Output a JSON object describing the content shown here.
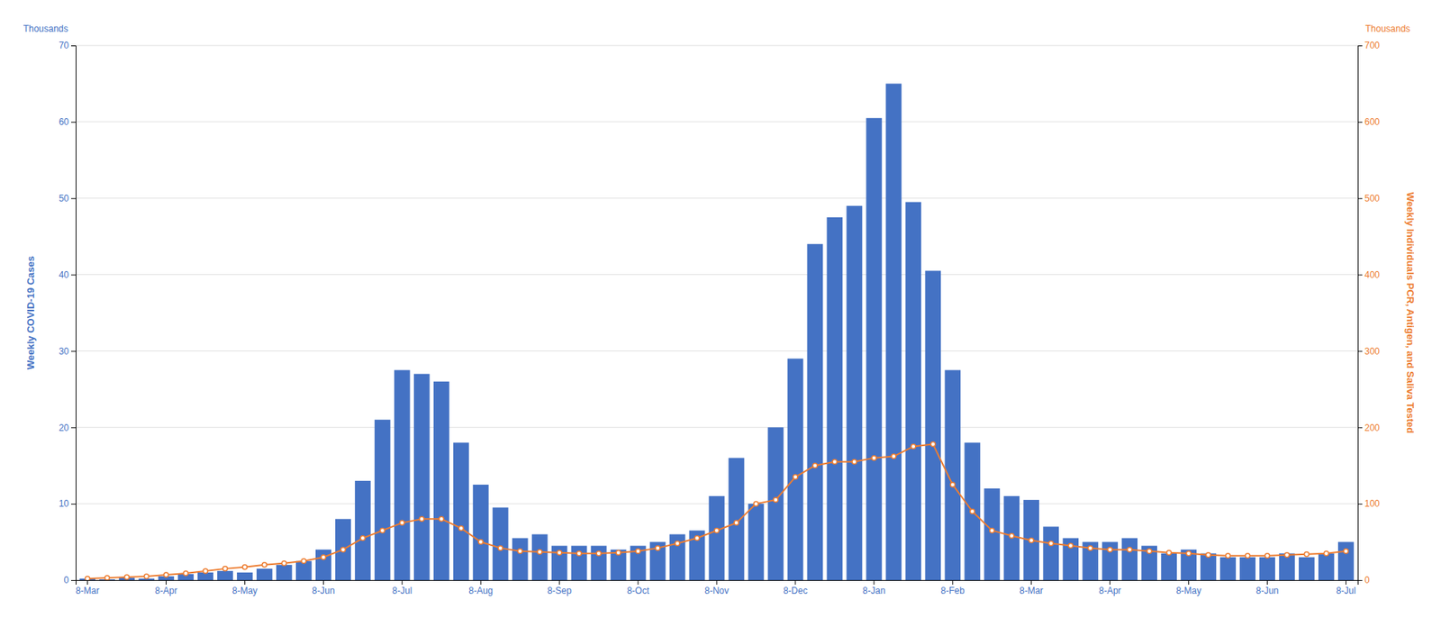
{
  "chart_data": {
    "type": "bar",
    "y_label": "Weekly COVID-19 Cases",
    "y2_label": "Weekly Individuals PCR, Antigen, and Saliva Tested",
    "annotations": [
      {
        "text": "Thousands",
        "axis": "y"
      },
      {
        "text": "Thousands",
        "axis": "y2"
      }
    ],
    "categories": [
      "8-Mar",
      null,
      null,
      null,
      "8-Apr",
      null,
      null,
      null,
      "8-May",
      null,
      null,
      null,
      "8-Jun",
      null,
      null,
      null,
      "8-Jul",
      null,
      null,
      null,
      "8-Aug",
      null,
      null,
      null,
      "8-Sep",
      null,
      null,
      null,
      "8-Oct",
      null,
      null,
      null,
      "8-Nov",
      null,
      null,
      null,
      "8-Dec",
      null,
      null,
      null,
      "8-Jan",
      null,
      null,
      null,
      "8-Feb",
      null,
      null,
      null,
      "8-Mar",
      null,
      null,
      null,
      "8-Apr",
      null,
      null,
      null,
      "8-May",
      null,
      null,
      null,
      "8-Jun",
      null,
      null,
      null,
      "8-Jul"
    ],
    "series": [
      {
        "type": "bar",
        "color": "#4472C4",
        "values": [
          0.2,
          0.1,
          0.3,
          0.2,
          0.5,
          0.8,
          1.0,
          1.2,
          1.0,
          1.5,
          2.0,
          2.5,
          4.0,
          8.0,
          13.0,
          21.0,
          27.5,
          27.0,
          26.0,
          18.0,
          12.5,
          9.5,
          5.5,
          6.0,
          4.5,
          4.5,
          4.5,
          4.0,
          4.5,
          5.0,
          6.0,
          6.5,
          11.0,
          16.0,
          10.0,
          20.0,
          29.0,
          44.0,
          47.5,
          49.0,
          60.5,
          65.0,
          49.5,
          40.5,
          27.5,
          18.0,
          12.0,
          11.0,
          10.5,
          7.0,
          5.5,
          5.0,
          5.0,
          5.5,
          4.5,
          3.5,
          4.0,
          3.5,
          3.0,
          3.0,
          3.0,
          3.5,
          3.0,
          3.5,
          5.0
        ]
      },
      {
        "type": "line",
        "axis": "y2",
        "color": "#ED7D31",
        "marker": "circle",
        "values": [
          2,
          3,
          4,
          5,
          7,
          9,
          12,
          15,
          17,
          20,
          22,
          25,
          30,
          40,
          55,
          65,
          75,
          80,
          80,
          68,
          50,
          42,
          38,
          37,
          36,
          35,
          35,
          36,
          38,
          42,
          48,
          55,
          65,
          75,
          100,
          105,
          135,
          150,
          155,
          155,
          160,
          162,
          175,
          178,
          125,
          90,
          65,
          58,
          52,
          48,
          45,
          42,
          40,
          40,
          38,
          36,
          35,
          33,
          32,
          32,
          32,
          33,
          34,
          35,
          38
        ]
      }
    ],
    "ylim": [
      0,
      70
    ],
    "yticks": [
      0,
      10,
      20,
      30,
      40,
      50,
      60,
      70
    ],
    "y2lim": [
      0,
      700
    ],
    "y2ticks": [
      0,
      100,
      200,
      300,
      400,
      500,
      600,
      700
    ],
    "grid": true
  }
}
